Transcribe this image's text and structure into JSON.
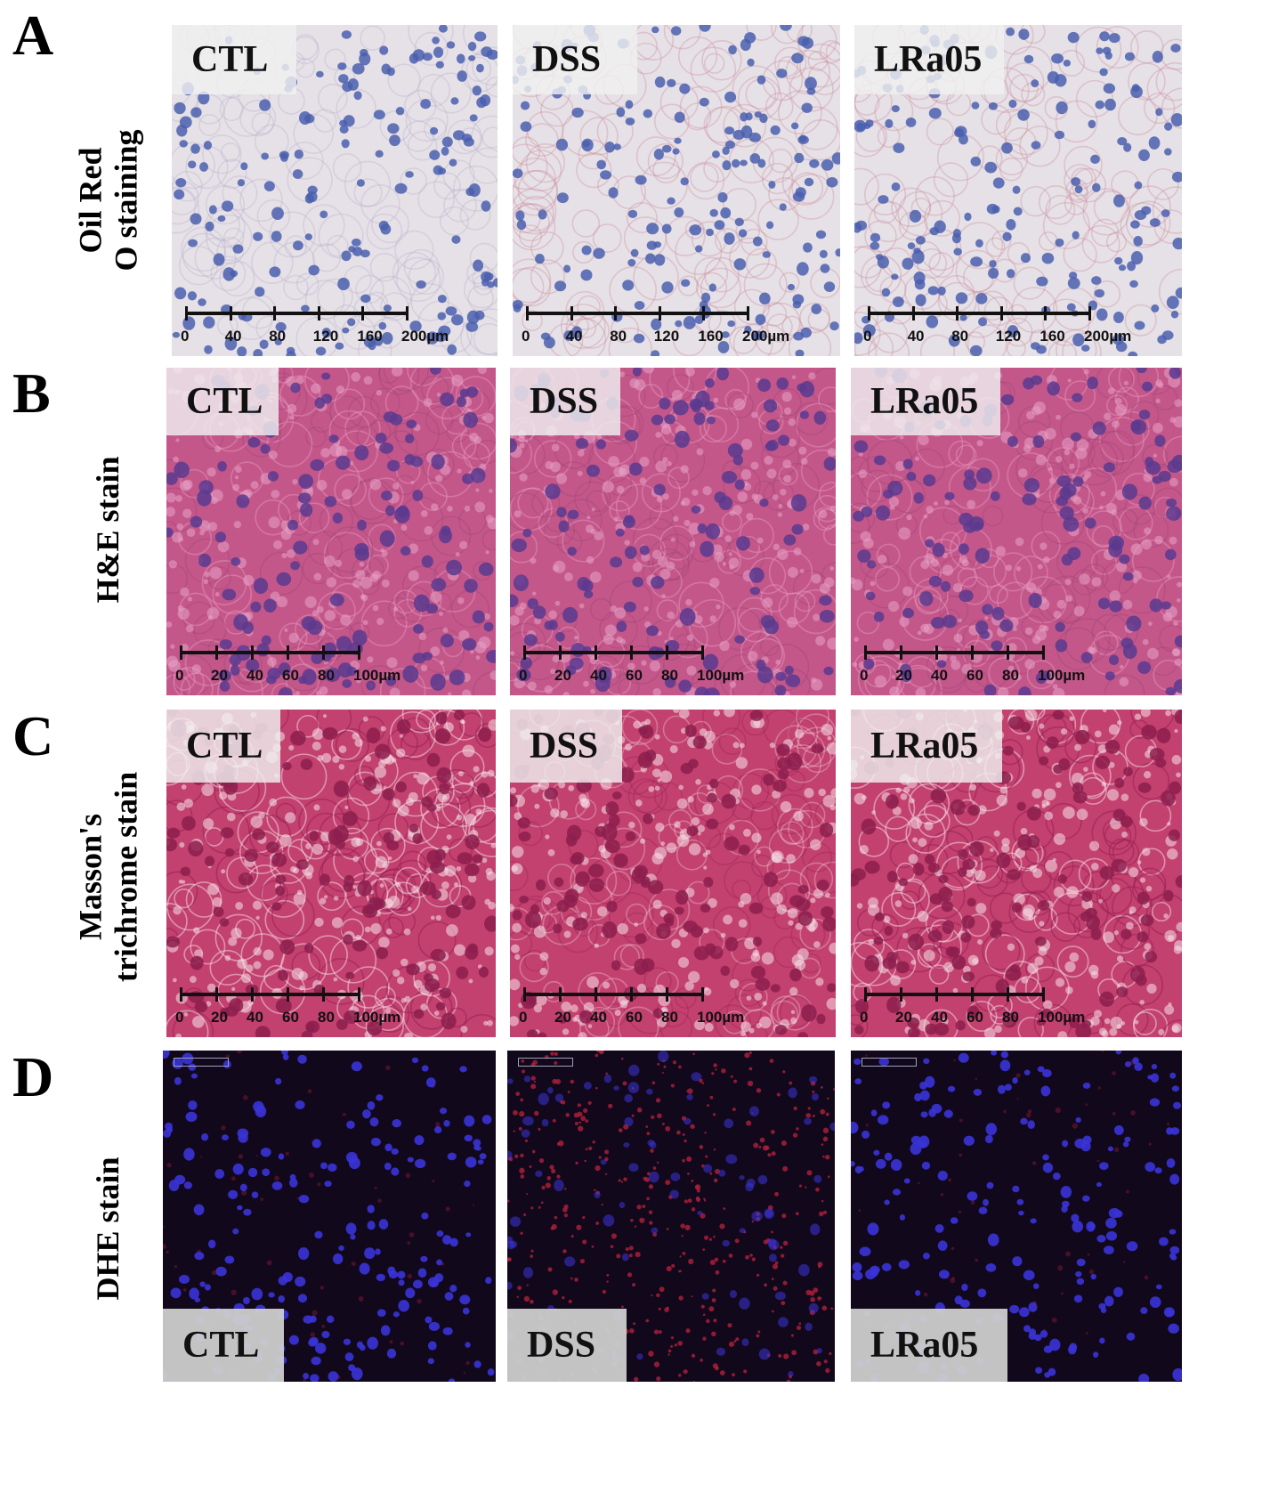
{
  "rows": [
    {
      "letter": "A",
      "label_lines": [
        "Oil Red",
        "O staining"
      ],
      "stain": "oil",
      "scale_ticks": [
        "0",
        "40",
        "80",
        "120",
        "160",
        "200µm"
      ],
      "tiles": [
        {
          "condition": "CTL"
        },
        {
          "condition": "DSS"
        },
        {
          "condition": "LRa05"
        }
      ]
    },
    {
      "letter": "B",
      "label_lines": [
        "H&E stain"
      ],
      "stain": "he",
      "scale_ticks": [
        "0",
        "20",
        "40",
        "60",
        "80",
        "100µm"
      ],
      "tiles": [
        {
          "condition": "CTL"
        },
        {
          "condition": "DSS"
        },
        {
          "condition": "LRa05"
        }
      ]
    },
    {
      "letter": "C",
      "label_lines": [
        "Masson's",
        "trichrome stain"
      ],
      "stain": "masson",
      "scale_ticks": [
        "0",
        "20",
        "40",
        "60",
        "80",
        "100µm"
      ],
      "tiles": [
        {
          "condition": "CTL"
        },
        {
          "condition": "DSS"
        },
        {
          "condition": "LRa05"
        }
      ]
    },
    {
      "letter": "D",
      "label_lines": [
        "DHE stain"
      ],
      "stain": "dhe",
      "scale_ticks": [],
      "tiles": [
        {
          "condition": "CTL"
        },
        {
          "condition": "DSS"
        },
        {
          "condition": "LRa05"
        }
      ]
    }
  ],
  "colors": {
    "oil_bg": "#e6e1e6",
    "oil_nucleus": "#4a5fae",
    "oil_fibre": "#c98a9a",
    "he_bg": "#c4578a",
    "he_nucleus": "#5b3a8e",
    "masson_bg": "#c2416e",
    "masson_nucleus": "#8c1e4d",
    "dhe_bg": "#12081c",
    "dhe_nucleus": "#3a34d8",
    "dhe_red": "#b0203a"
  }
}
